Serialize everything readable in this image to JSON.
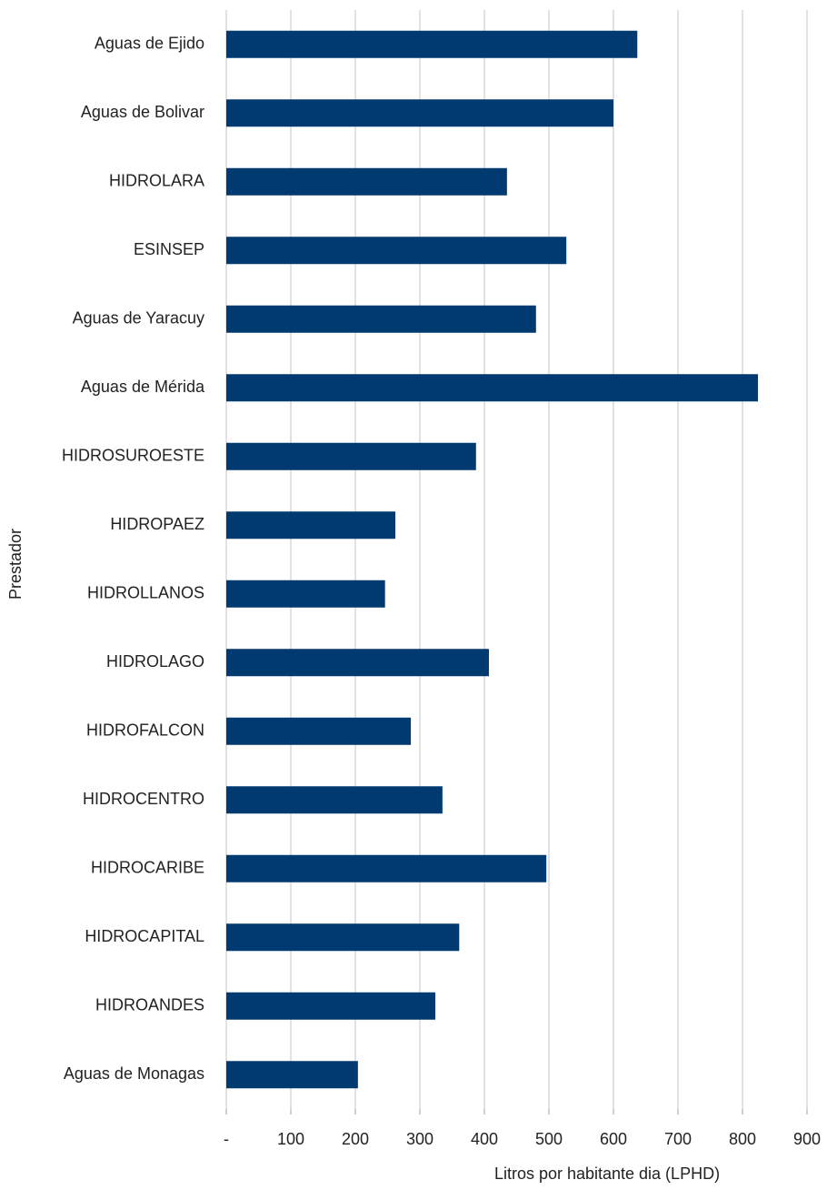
{
  "chart_data": {
    "type": "bar",
    "orientation": "horizontal",
    "x_axis_label": "Litros por habitante dia (LPHD)",
    "y_axis_label": "Prestador",
    "categories": [
      "Aguas de Ejido",
      "Aguas de Bolivar",
      "HIDROLARA",
      "ESINSEP",
      "Aguas de Yaracuy",
      "Aguas de Mérida",
      "HIDROSUROESTE",
      "HIDROPAEZ",
      "HIDROLLANOS",
      "HIDROLAGO",
      "HIDROFALCON",
      "HIDROCENTRO",
      "HIDROCARIBE",
      "HIDROCAPITAL",
      "HIDROANDES",
      "Aguas de Monagas"
    ],
    "values": [
      637,
      600,
      435,
      527,
      480,
      824,
      387,
      262,
      246,
      407,
      286,
      335,
      496,
      361,
      324,
      204
    ],
    "color": "#003a70",
    "xlim": [
      0,
      900
    ],
    "xticks": [
      {
        "value": 0,
        "label": "-"
      },
      100,
      200,
      300,
      400,
      500,
      600,
      700,
      800,
      900
    ],
    "grid": true
  }
}
